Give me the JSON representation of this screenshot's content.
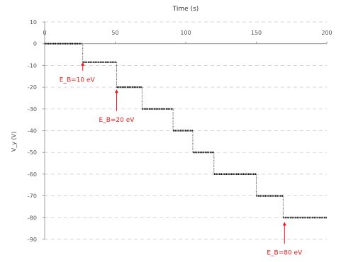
{
  "chart_data": {
    "type": "line",
    "title": "Time (s)",
    "xlabel": "Time (s)",
    "ylabel": "V_y (V)",
    "xlim": [
      0,
      200
    ],
    "ylim": [
      -90,
      10
    ],
    "x_ticks": [
      0,
      50,
      100,
      150,
      200
    ],
    "y_ticks": [
      10,
      0,
      -10,
      -20,
      -30,
      -40,
      -50,
      -60,
      -70,
      -80,
      -90
    ],
    "x_axis_position": "top",
    "grid": "horizontal dashed",
    "series_color": "#111111",
    "annotation_color": "#e41a1c",
    "series": [
      {
        "steps": [
          {
            "x_start": 0,
            "x_end": 26,
            "y": 0
          },
          {
            "x_start": 27,
            "x_end": 51,
            "y": -8.5
          },
          {
            "x_start": 51,
            "x_end": 69,
            "y": -20
          },
          {
            "x_start": 69,
            "x_end": 91,
            "y": -30
          },
          {
            "x_start": 91,
            "x_end": 105,
            "y": -40
          },
          {
            "x_start": 105,
            "x_end": 120,
            "y": -50
          },
          {
            "x_start": 120,
            "x_end": 150,
            "y": -60
          },
          {
            "x_start": 150,
            "x_end": 169,
            "y": -70
          },
          {
            "x_start": 169,
            "x_end": 200,
            "y": -80
          }
        ]
      }
    ],
    "annotations": [
      {
        "text": "E_B=10 eV",
        "arrow_x": 27,
        "arrow_from_y": -12.5,
        "arrow_to_y": -8.5,
        "text_x": 23,
        "text_y": -17.5
      },
      {
        "text": "E_B=20 eV",
        "arrow_x": 51,
        "arrow_from_y": -31,
        "arrow_to_y": -21,
        "text_x": 51,
        "text_y": -36
      },
      {
        "text": "E_B=80 eV",
        "arrow_x": 170,
        "arrow_from_y": -92,
        "arrow_to_y": -82,
        "text_x": 170,
        "text_y": -97
      }
    ]
  }
}
